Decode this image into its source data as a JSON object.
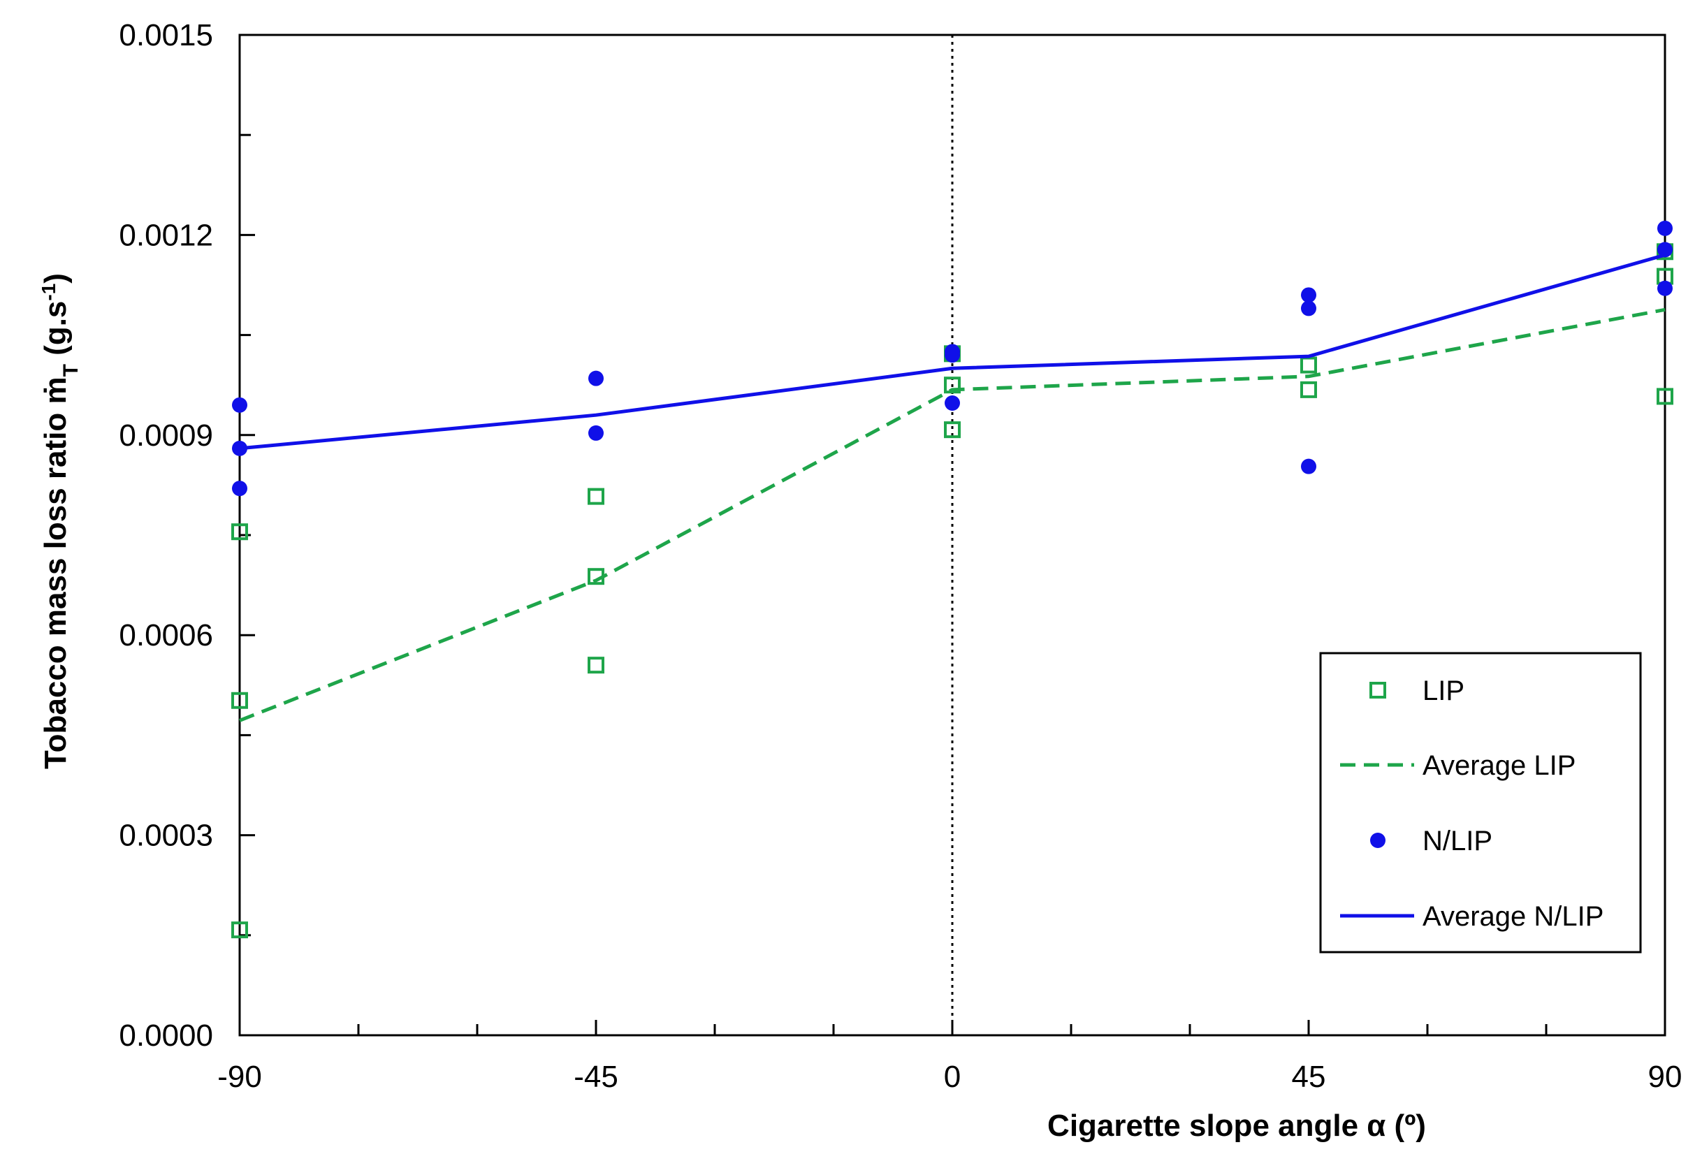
{
  "chart_data": {
    "type": "scatter",
    "xlabel": "Cigarette slope angle α (º)",
    "ylabel": {
      "main": "Tobacco mass loss ratio ṁ",
      "subscript": "T",
      "units_prefix": "(g.s",
      "units_superscript": "-1",
      "units_suffix": ")"
    },
    "xlim": [
      -90,
      90
    ],
    "ylim": [
      0.0,
      0.0015
    ],
    "x_ticks": [
      -90,
      -45,
      0,
      45,
      90
    ],
    "x_tick_labels": [
      "-90",
      "-45",
      "0",
      "45",
      "90"
    ],
    "y_ticks": [
      0.0,
      0.0003,
      0.0006,
      0.0009,
      0.0012,
      0.0015
    ],
    "y_tick_labels": [
      "0.0000",
      "0.0003",
      "0.0006",
      "0.0009",
      "0.0012",
      "0.0015"
    ],
    "x_minor_step": 15,
    "y_minor_step": 0.00015,
    "reference_line_x": 0,
    "grid": false,
    "legend_position": "bottom-right",
    "series": [
      {
        "name": "LIP",
        "kind": "scatter",
        "marker": "open-square",
        "color": "#1ea54a",
        "points": [
          [
            -90,
            0.000755
          ],
          [
            -90,
            0.000502
          ],
          [
            -90,
            0.000158
          ],
          [
            -45,
            0.000808
          ],
          [
            -45,
            0.000688
          ],
          [
            -45,
            0.000555
          ],
          [
            0,
            0.001022
          ],
          [
            0,
            0.000975
          ],
          [
            0,
            0.000908
          ],
          [
            45,
            0.001005
          ],
          [
            45,
            0.000968
          ],
          [
            90,
            0.001175
          ],
          [
            90,
            0.001138
          ],
          [
            90,
            0.000958
          ]
        ]
      },
      {
        "name": "Average LIP",
        "kind": "line",
        "line_style": "dashed",
        "color": "#1ea54a",
        "points": [
          [
            -90,
            0.000472
          ],
          [
            -45,
            0.000682
          ],
          [
            0,
            0.000968
          ],
          [
            45,
            0.000988
          ],
          [
            90,
            0.001088
          ]
        ]
      },
      {
        "name": "N/LIP",
        "kind": "scatter",
        "marker": "filled-circle",
        "color": "#1010e8",
        "points": [
          [
            -90,
            0.000945
          ],
          [
            -90,
            0.00088
          ],
          [
            -90,
            0.00082
          ],
          [
            -45,
            0.000985
          ],
          [
            -45,
            0.000903
          ],
          [
            0,
            0.001025
          ],
          [
            0,
            0.00102
          ],
          [
            0,
            0.000948
          ],
          [
            45,
            0.00111
          ],
          [
            45,
            0.00109
          ],
          [
            45,
            0.000853
          ],
          [
            90,
            0.00121
          ],
          [
            90,
            0.001178
          ],
          [
            90,
            0.00112
          ]
        ]
      },
      {
        "name": "Average N/LIP",
        "kind": "line",
        "line_style": "solid",
        "color": "#1010e8",
        "points": [
          [
            -90,
            0.00088
          ],
          [
            -45,
            0.00093
          ],
          [
            0,
            0.001
          ],
          [
            45,
            0.001018
          ],
          [
            90,
            0.00117
          ]
        ]
      }
    ]
  }
}
